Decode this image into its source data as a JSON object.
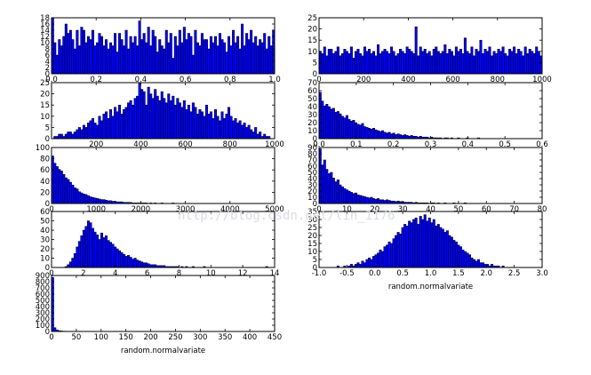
{
  "watermark": "http://blog.csdn.net/lin_1176",
  "colors": {
    "bar_fill": "#0000ff",
    "bar_edge": "#000000",
    "frame": "#000000",
    "background": "#ffffff",
    "watermark": "#d9dce2"
  },
  "chart_data": [
    {
      "type": "bar",
      "bins": 100,
      "xlim": [
        0,
        1
      ],
      "ylim": [
        0,
        18
      ],
      "xticks": [
        "0.0",
        "0.2",
        "0.4",
        "0.6",
        "0.8",
        "1.0"
      ],
      "yticks": [
        "0",
        "2",
        "4",
        "6",
        "8",
        "10",
        "12",
        "14",
        "16",
        "18"
      ],
      "xlabel": "",
      "values": [
        18,
        10,
        6,
        11,
        9,
        12,
        16,
        13,
        14,
        11,
        8,
        14,
        9,
        15,
        14,
        10,
        12,
        11,
        14,
        9,
        10,
        13,
        12,
        9,
        11,
        8,
        10,
        9,
        13,
        7,
        13,
        11,
        9,
        14,
        8,
        12,
        10,
        12,
        9,
        17,
        11,
        13,
        10,
        15,
        9,
        14,
        12,
        7,
        11,
        9,
        8,
        14,
        10,
        13,
        5,
        12,
        9,
        14,
        10,
        15,
        11,
        13,
        12,
        6,
        14,
        10,
        9,
        13,
        11,
        11,
        8,
        12,
        10,
        12,
        9,
        13,
        11,
        10,
        7,
        12,
        9,
        14,
        10,
        12,
        8,
        16,
        9,
        13,
        11,
        14,
        10,
        12,
        9,
        11,
        10,
        13,
        8,
        12,
        9,
        14
      ]
    },
    {
      "type": "bar",
      "bins": 100,
      "xlim": [
        0,
        1000
      ],
      "ylim": [
        0,
        25
      ],
      "xticks": [
        "0",
        "200",
        "400",
        "600",
        "800",
        "1000"
      ],
      "yticks": [
        "0",
        "5",
        "10",
        "15",
        "20",
        "25"
      ],
      "xlabel": "",
      "values": [
        10,
        9,
        12,
        8,
        11,
        11,
        9,
        10,
        12,
        8,
        9,
        11,
        10,
        9,
        12,
        7,
        10,
        11,
        9,
        8,
        12,
        10,
        11,
        9,
        10,
        8,
        13,
        9,
        10,
        11,
        10,
        9,
        12,
        10,
        8,
        9,
        11,
        10,
        9,
        12,
        11,
        10,
        9,
        21,
        8,
        12,
        10,
        11,
        9,
        10,
        8,
        11,
        12,
        10,
        9,
        10,
        13,
        9,
        11,
        10,
        8,
        12,
        10,
        11,
        9,
        16,
        10,
        9,
        12,
        8,
        11,
        10,
        15,
        9,
        11,
        10,
        12,
        8,
        10,
        9,
        11,
        10,
        12,
        9,
        8,
        11,
        10,
        12,
        9,
        11,
        10,
        8,
        12,
        9,
        11,
        10,
        9,
        12,
        10,
        8
      ]
    },
    {
      "type": "bar",
      "bins": 100,
      "xlim": [
        0,
        1000
      ],
      "ylim": [
        0,
        25
      ],
      "xticks": [
        "200",
        "400",
        "600",
        "800",
        "1000"
      ],
      "yticks": [
        "0",
        "5",
        "10",
        "15",
        "20",
        "25"
      ],
      "xlabel": "",
      "values": [
        0,
        1,
        1,
        2,
        2,
        1,
        2,
        3,
        3,
        2,
        3,
        4,
        5,
        4,
        6,
        5,
        7,
        8,
        9,
        7,
        6,
        10,
        8,
        11,
        12,
        9,
        13,
        10,
        14,
        12,
        15,
        11,
        13,
        14,
        16,
        17,
        15,
        18,
        19,
        25,
        22,
        21,
        15,
        23,
        20,
        18,
        22,
        19,
        17,
        21,
        18,
        16,
        20,
        17,
        19,
        15,
        18,
        16,
        14,
        17,
        13,
        15,
        12,
        16,
        14,
        11,
        13,
        12,
        10,
        15,
        11,
        12,
        9,
        13,
        10,
        8,
        12,
        9,
        11,
        14,
        10,
        8,
        9,
        7,
        8,
        6,
        7,
        5,
        6,
        4,
        3,
        5,
        2,
        3,
        1,
        2,
        1,
        1,
        0,
        0
      ]
    },
    {
      "type": "bar",
      "bins": 100,
      "xlim": [
        0,
        0.6
      ],
      "ylim": [
        0,
        70
      ],
      "xticks": [
        "0.0",
        "0.1",
        "0.2",
        "0.3",
        "0.4",
        "0.5",
        "0.6"
      ],
      "yticks": [
        "0",
        "10",
        "20",
        "30",
        "40",
        "50",
        "60",
        "70"
      ],
      "xlabel": "",
      "values": [
        58,
        47,
        41,
        43,
        40,
        37,
        38,
        33,
        34,
        31,
        28,
        26,
        29,
        24,
        22,
        23,
        20,
        18,
        17,
        19,
        15,
        14,
        13,
        12,
        13,
        11,
        10,
        9,
        10,
        8,
        7,
        8,
        6,
        7,
        5,
        6,
        5,
        4,
        5,
        4,
        3,
        4,
        3,
        3,
        2,
        3,
        2,
        2,
        2,
        1,
        2,
        1,
        1,
        1,
        1,
        0,
        1,
        1,
        0,
        1,
        0,
        0,
        1,
        0,
        0,
        0,
        1,
        0,
        0,
        0,
        0,
        1,
        0,
        0,
        0,
        0,
        0,
        0,
        0,
        0,
        0,
        0,
        0,
        0,
        0,
        0,
        0,
        0,
        0,
        0,
        0,
        0,
        0,
        0,
        0,
        0,
        0,
        0,
        0,
        0
      ]
    },
    {
      "type": "bar",
      "bins": 100,
      "xlim": [
        0,
        5000
      ],
      "ylim": [
        0,
        100
      ],
      "xticks": [
        "0",
        "1000",
        "2000",
        "3000",
        "4000",
        "5000"
      ],
      "yticks": [
        "0",
        "20",
        "40",
        "60",
        "80",
        "100"
      ],
      "xlabel": "",
      "values": [
        85,
        72,
        66,
        61,
        58,
        52,
        46,
        43,
        38,
        33,
        28,
        26,
        21,
        19,
        17,
        16,
        14,
        12,
        11,
        10,
        9,
        8,
        7,
        7,
        6,
        5,
        5,
        4,
        4,
        3,
        3,
        3,
        2,
        2,
        2,
        2,
        1,
        1,
        1,
        1,
        1,
        1,
        1,
        0,
        1,
        0,
        1,
        0,
        0,
        1,
        0,
        0,
        0,
        0,
        1,
        0,
        0,
        0,
        0,
        0,
        0,
        0,
        0,
        0,
        0,
        0,
        0,
        0,
        0,
        0,
        0,
        0,
        0,
        0,
        0,
        0,
        0,
        0,
        0,
        0,
        0,
        0,
        0,
        0,
        0,
        0,
        0,
        0,
        0,
        0,
        0,
        0,
        0,
        0,
        0,
        0,
        0,
        0,
        0,
        0
      ]
    },
    {
      "type": "bar",
      "bins": 100,
      "xlim": [
        0,
        80
      ],
      "ylim": [
        0,
        90
      ],
      "xticks": [
        "0",
        "10",
        "20",
        "30",
        "40",
        "50",
        "60",
        "70",
        "80"
      ],
      "yticks": [
        "0",
        "10",
        "20",
        "30",
        "40",
        "50",
        "60",
        "70",
        "80",
        "90"
      ],
      "xlabel": "",
      "values": [
        88,
        62,
        70,
        55,
        48,
        50,
        41,
        35,
        38,
        30,
        27,
        24,
        22,
        20,
        18,
        16,
        17,
        14,
        13,
        12,
        11,
        10,
        9,
        10,
        8,
        7,
        8,
        6,
        6,
        5,
        6,
        5,
        4,
        4,
        3,
        4,
        3,
        3,
        2,
        2,
        2,
        2,
        1,
        2,
        1,
        1,
        1,
        1,
        1,
        0,
        1,
        1,
        0,
        1,
        0,
        0,
        1,
        0,
        0,
        0,
        1,
        0,
        0,
        0,
        0,
        1,
        0,
        0,
        0,
        0,
        0,
        0,
        0,
        0,
        0,
        0,
        0,
        0,
        0,
        0,
        0,
        0,
        0,
        0,
        0,
        0,
        0,
        0,
        0,
        0,
        0,
        0,
        0,
        0,
        0,
        0,
        0,
        0,
        0,
        0
      ]
    },
    {
      "type": "bar",
      "bins": 100,
      "xlim": [
        0,
        14
      ],
      "ylim": [
        0,
        60
      ],
      "xticks": [
        "0",
        "2",
        "4",
        "6",
        "8",
        "10",
        "12",
        "14"
      ],
      "yticks": [
        "0",
        "10",
        "20",
        "30",
        "40",
        "50",
        "60"
      ],
      "xlabel": "",
      "values": [
        0,
        0,
        0,
        0,
        0,
        0,
        1,
        3,
        6,
        10,
        15,
        22,
        28,
        34,
        40,
        44,
        50,
        48,
        42,
        38,
        35,
        30,
        37,
        32,
        34,
        29,
        27,
        25,
        22,
        20,
        18,
        16,
        14,
        12,
        13,
        11,
        9,
        10,
        8,
        7,
        6,
        5,
        5,
        4,
        3,
        3,
        3,
        2,
        2,
        2,
        2,
        1,
        1,
        1,
        1,
        1,
        1,
        0,
        1,
        0,
        1,
        0,
        0,
        1,
        0,
        0,
        0,
        0,
        1,
        0,
        0,
        0,
        0,
        0,
        0,
        0,
        0,
        0,
        0,
        0,
        0,
        0,
        0,
        0,
        0,
        0,
        0,
        0,
        0,
        0,
        0,
        0,
        0,
        0,
        0,
        0,
        1,
        0,
        0,
        0
      ]
    },
    {
      "type": "bar",
      "bins": 100,
      "xlim": [
        -1.0,
        3.0
      ],
      "ylim": [
        0,
        35
      ],
      "xticks": [
        "-1.0",
        "-0.5",
        "0.0",
        "0.5",
        "1.0",
        "1.5",
        "2.0",
        "2.5",
        "3.0"
      ],
      "yticks": [
        "0",
        "5",
        "10",
        "15",
        "20",
        "25",
        "30",
        "35"
      ],
      "xlabel": "random.normalvariate",
      "values": [
        0,
        0,
        0,
        0,
        0,
        0,
        0,
        0,
        1,
        0,
        0,
        1,
        0,
        1,
        2,
        1,
        2,
        3,
        2,
        4,
        3,
        5,
        6,
        5,
        7,
        8,
        9,
        11,
        10,
        13,
        14,
        16,
        15,
        18,
        20,
        22,
        21,
        25,
        27,
        26,
        29,
        28,
        30,
        31,
        27,
        32,
        30,
        33,
        29,
        31,
        28,
        30,
        26,
        27,
        25,
        24,
        22,
        23,
        20,
        19,
        17,
        16,
        14,
        13,
        11,
        10,
        9,
        8,
        6,
        5,
        4,
        5,
        3,
        3,
        2,
        2,
        1,
        2,
        1,
        1,
        1,
        0,
        1,
        0,
        0,
        0,
        0,
        0,
        0,
        0,
        0,
        0,
        0,
        0,
        0,
        0,
        0,
        0,
        0,
        0
      ]
    },
    {
      "type": "bar",
      "bins": 100,
      "xlim": [
        0,
        450
      ],
      "ylim": [
        0,
        900
      ],
      "xticks": [
        "0",
        "50",
        "100",
        "150",
        "200",
        "250",
        "300",
        "350",
        "400",
        "450"
      ],
      "yticks": [
        "0",
        "100",
        "200",
        "300",
        "400",
        "500",
        "600",
        "700",
        "800",
        "900"
      ],
      "xlabel": "random.normalvariate",
      "values": [
        870,
        60,
        25,
        12,
        8,
        5,
        4,
        3,
        2,
        2,
        1,
        1,
        1,
        1,
        1,
        0,
        1,
        0,
        0,
        1,
        0,
        0,
        0,
        0,
        0,
        0,
        0,
        0,
        0,
        0,
        0,
        0,
        0,
        0,
        0,
        0,
        0,
        0,
        0,
        0,
        0,
        0,
        0,
        0,
        0,
        0,
        0,
        0,
        0,
        0,
        0,
        0,
        0,
        0,
        0,
        0,
        0,
        0,
        0,
        0,
        0,
        0,
        0,
        0,
        0,
        0,
        0,
        0,
        0,
        0,
        0,
        0,
        0,
        0,
        0,
        0,
        0,
        0,
        0,
        0,
        0,
        0,
        0,
        0,
        0,
        0,
        0,
        0,
        0,
        0,
        0,
        0,
        0,
        0,
        0,
        0,
        0,
        0,
        0,
        0
      ]
    }
  ]
}
